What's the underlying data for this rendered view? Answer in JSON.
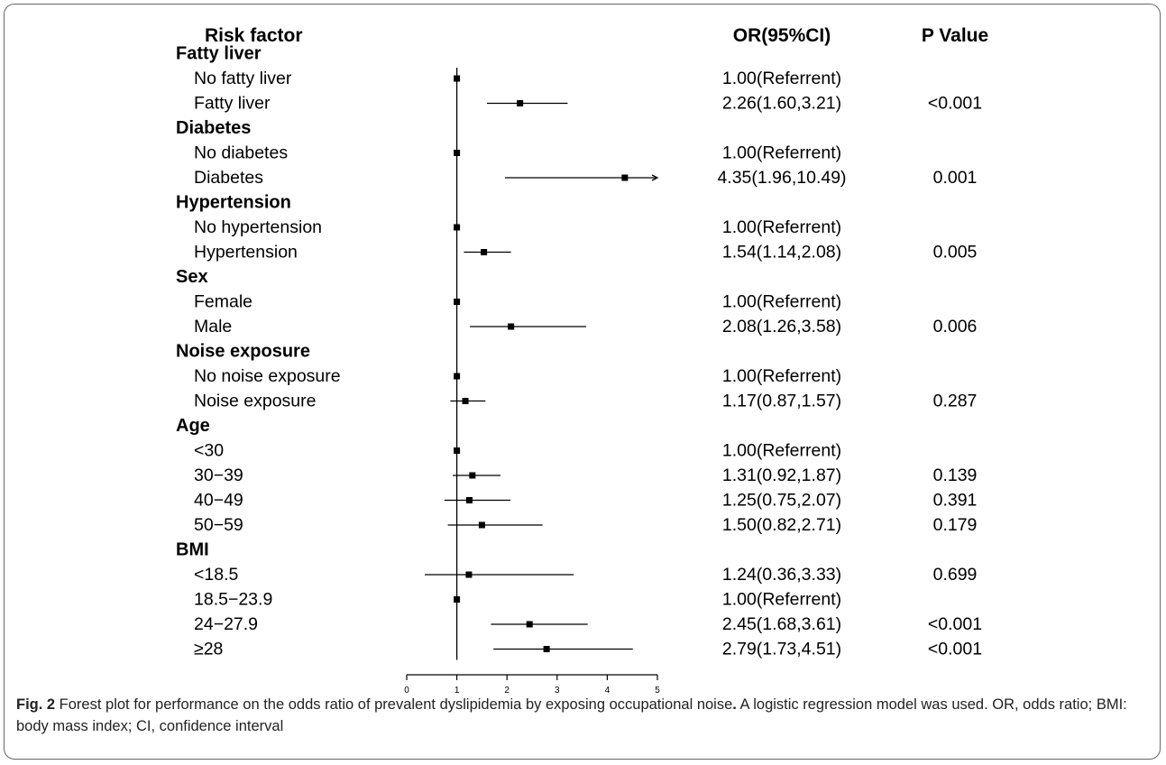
{
  "chart_data": {
    "type": "forest",
    "columns": {
      "risk_factor": "Risk factor",
      "or_ci": "OR(95%CI)",
      "p_value": "P Value"
    },
    "groups": [
      {
        "name": "Fatty liver",
        "rows": [
          {
            "label": "No fatty liver",
            "or": 1.0,
            "lo": 1.0,
            "hi": 1.0,
            "or_text": "1.00(Referrent)",
            "p": ""
          },
          {
            "label": "Fatty liver",
            "or": 2.26,
            "lo": 1.6,
            "hi": 3.21,
            "or_text": "2.26(1.60,3.21)",
            "p": "<0.001"
          }
        ]
      },
      {
        "name": "Diabetes",
        "rows": [
          {
            "label": "No diabetes",
            "or": 1.0,
            "lo": 1.0,
            "hi": 1.0,
            "or_text": "1.00(Referrent)",
            "p": ""
          },
          {
            "label": "Diabetes",
            "or": 4.35,
            "lo": 1.96,
            "hi": 10.49,
            "or_text": "4.35(1.96,10.49)",
            "p": "0.001"
          }
        ]
      },
      {
        "name": "Hypertension",
        "rows": [
          {
            "label": "No hypertension",
            "or": 1.0,
            "lo": 1.0,
            "hi": 1.0,
            "or_text": "1.00(Referrent)",
            "p": ""
          },
          {
            "label": "Hypertension",
            "or": 1.54,
            "lo": 1.14,
            "hi": 2.08,
            "or_text": "1.54(1.14,2.08)",
            "p": "0.005"
          }
        ]
      },
      {
        "name": "Sex",
        "rows": [
          {
            "label": "Female",
            "or": 1.0,
            "lo": 1.0,
            "hi": 1.0,
            "or_text": "1.00(Referrent)",
            "p": ""
          },
          {
            "label": "Male",
            "or": 2.08,
            "lo": 1.26,
            "hi": 3.58,
            "or_text": "2.08(1.26,3.58)",
            "p": "0.006"
          }
        ]
      },
      {
        "name": "Noise exposure",
        "rows": [
          {
            "label": "No noise exposure",
            "or": 1.0,
            "lo": 1.0,
            "hi": 1.0,
            "or_text": "1.00(Referrent)",
            "p": ""
          },
          {
            "label": "Noise exposure",
            "or": 1.17,
            "lo": 0.87,
            "hi": 1.57,
            "or_text": "1.17(0.87,1.57)",
            "p": "0.287"
          }
        ]
      },
      {
        "name": "Age",
        "rows": [
          {
            "label": "<30",
            "or": 1.0,
            "lo": 1.0,
            "hi": 1.0,
            "or_text": "1.00(Referrent)",
            "p": ""
          },
          {
            "label": "30−39",
            "or": 1.31,
            "lo": 0.92,
            "hi": 1.87,
            "or_text": "1.31(0.92,1.87)",
            "p": "0.139"
          },
          {
            "label": "40−49",
            "or": 1.25,
            "lo": 0.75,
            "hi": 2.07,
            "or_text": "1.25(0.75,2.07)",
            "p": "0.391"
          },
          {
            "label": "50−59",
            "or": 1.5,
            "lo": 0.82,
            "hi": 2.71,
            "or_text": "1.50(0.82,2.71)",
            "p": "0.179"
          }
        ]
      },
      {
        "name": "BMI",
        "rows": [
          {
            "label": "<18.5",
            "or": 1.24,
            "lo": 0.36,
            "hi": 3.33,
            "or_text": "1.24(0.36,3.33)",
            "p": "0.699"
          },
          {
            "label": "18.5−23.9",
            "or": 1.0,
            "lo": 1.0,
            "hi": 1.0,
            "or_text": "1.00(Referrent)",
            "p": ""
          },
          {
            "label": "24−27.9",
            "or": 2.45,
            "lo": 1.68,
            "hi": 3.61,
            "or_text": "2.45(1.68,3.61)",
            "p": "<0.001"
          },
          {
            "label": "≥28",
            "or": 2.79,
            "lo": 1.73,
            "hi": 4.51,
            "or_text": "2.79(1.73,4.51)",
            "p": "<0.001"
          }
        ]
      }
    ],
    "x_axis": {
      "xlim": [
        0,
        5
      ],
      "ticks": [
        0,
        1,
        2,
        3,
        4,
        5
      ],
      "reference_line": 1
    },
    "grid": false
  },
  "caption": {
    "label": "Fig. 2",
    "title": " Forest plot for performance on the odds ratio of prevalent dyslipidemia by exposing occupational noise",
    "title_end": ".",
    "body": " A logistic regression model was used. OR, odds ratio; BMI: body mass index; CI, confidence interval"
  }
}
